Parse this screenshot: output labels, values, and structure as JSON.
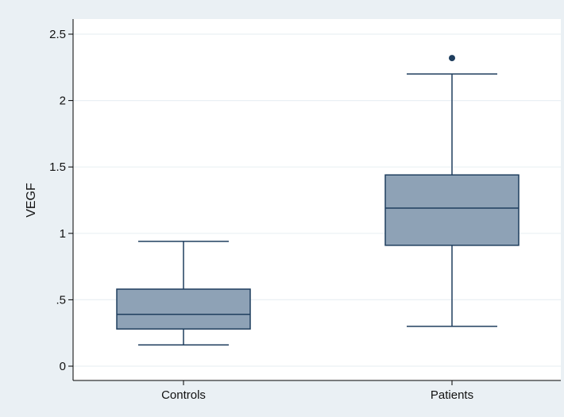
{
  "chart_data": {
    "type": "box",
    "title": "",
    "xlabel": "",
    "ylabel": "VEGF",
    "ylim": [
      -0.1,
      2.6
    ],
    "yticks": [
      {
        "value": 0,
        "label": "0"
      },
      {
        "value": 0.5,
        "label": ".5"
      },
      {
        "value": 1,
        "label": "1"
      },
      {
        "value": 1.5,
        "label": "1.5"
      },
      {
        "value": 2,
        "label": "2"
      },
      {
        "value": 2.5,
        "label": "2.5"
      }
    ],
    "grid": true,
    "categories": [
      "Controls",
      "Patients"
    ],
    "boxes": [
      {
        "category": "Controls",
        "whisker_low": 0.16,
        "q1": 0.28,
        "median": 0.39,
        "q3": 0.58,
        "whisker_high": 0.94,
        "outliers": []
      },
      {
        "category": "Patients",
        "whisker_low": 0.3,
        "q1": 0.91,
        "median": 1.19,
        "q3": 1.44,
        "whisker_high": 2.2,
        "outliers": [
          2.32
        ]
      }
    ],
    "colors": {
      "box_fill": "#8ea2b6",
      "box_stroke": "#1f3e5e",
      "outlier": "#1f3e5e",
      "grid": "#eaf0f4",
      "background": "#eaf0f4",
      "plot_background": "#ffffff",
      "axis": "#000000"
    }
  }
}
